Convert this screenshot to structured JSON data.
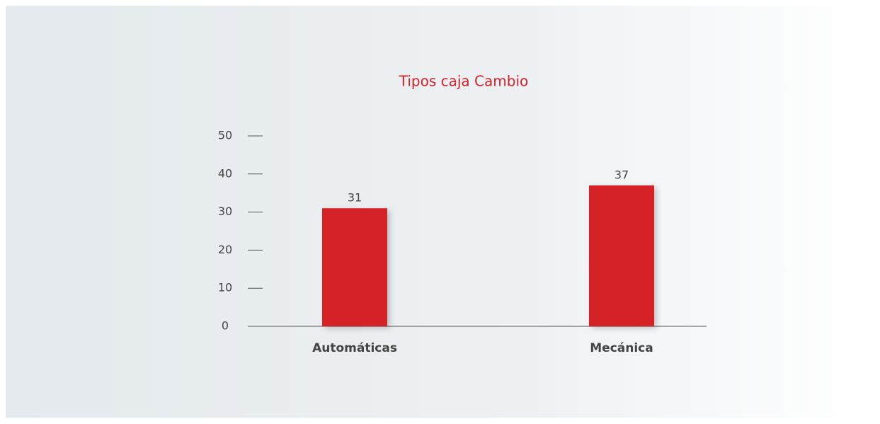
{
  "chart_data": {
    "type": "bar",
    "title": "Tipos caja Cambio",
    "categories": [
      "Automáticas",
      "Mecánica"
    ],
    "values": [
      31,
      37
    ],
    "color": "#d42128",
    "ylim": [
      0,
      50
    ],
    "yticks": [
      0,
      10,
      20,
      30,
      40,
      50
    ],
    "grid": false
  }
}
